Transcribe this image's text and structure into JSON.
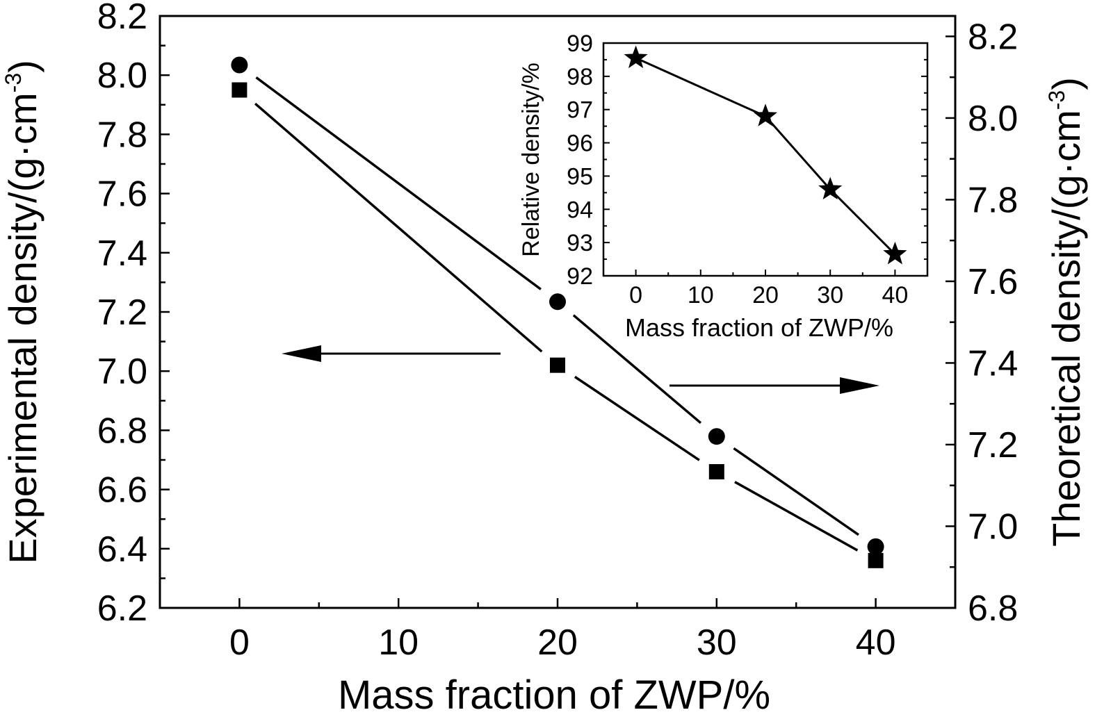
{
  "chart_data": [
    {
      "type": "line",
      "xlabel": "Mass fraction of ZWP/%",
      "ylabel_left": "Experimental density/(g·cm",
      "ylabel_right": "Theoretical density/(g·cm",
      "ylabel_exponent": "-3",
      "ylabel_close": ")",
      "xlim": [
        -5,
        45
      ],
      "xticks": [
        0,
        10,
        20,
        30,
        40
      ],
      "ylim_left": [
        6.2,
        8.2
      ],
      "yticks_left": [
        6.2,
        6.4,
        6.6,
        6.8,
        7.0,
        7.2,
        7.4,
        7.6,
        7.8,
        8.0,
        8.2
      ],
      "ylim_right": [
        6.8,
        8.25
      ],
      "yticks_right": [
        6.8,
        7.0,
        7.2,
        7.4,
        7.6,
        7.8,
        8.0,
        8.2
      ],
      "series": [
        {
          "name": "Experimental density",
          "axis": "left",
          "marker": "square",
          "x": [
            0,
            20,
            30,
            40
          ],
          "values": [
            7.95,
            7.02,
            6.66,
            6.36
          ]
        },
        {
          "name": "Theoretical density",
          "axis": "right",
          "marker": "circle",
          "x": [
            0,
            20,
            30,
            40
          ],
          "values": [
            8.13,
            7.55,
            7.22,
            6.95
          ]
        }
      ],
      "annotations": [
        "arrow pointing left to left axis",
        "arrow pointing right to right axis"
      ]
    },
    {
      "type": "line",
      "title": "inset",
      "xlabel": "Mass fraction of ZWP/%",
      "ylabel": "Relative density/%",
      "xlim": [
        -5,
        45
      ],
      "xticks": [
        0,
        10,
        20,
        30,
        40
      ],
      "ylim": [
        92,
        99
      ],
      "yticks": [
        92,
        93,
        94,
        95,
        96,
        97,
        98,
        99
      ],
      "series": [
        {
          "name": "Relative density",
          "marker": "star",
          "x": [
            0,
            20,
            30,
            40
          ],
          "values": [
            98.55,
            96.8,
            94.6,
            92.65
          ]
        }
      ]
    }
  ],
  "colors": {
    "ink": "#000000",
    "background": "#ffffff"
  }
}
